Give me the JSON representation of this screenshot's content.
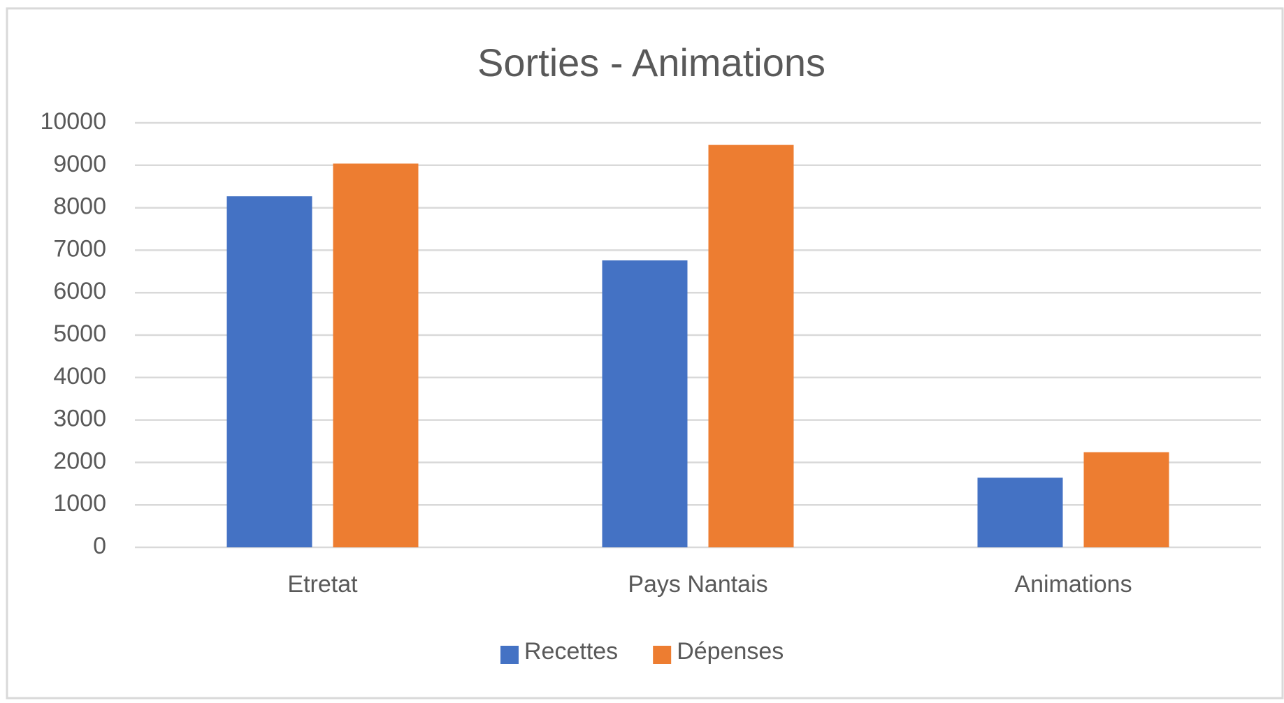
{
  "chart_data": {
    "type": "bar",
    "title": "Sorties - Animations",
    "categories": [
      "Etretat",
      "Pays Nantais",
      "Animations"
    ],
    "series": [
      {
        "name": "Recettes",
        "color": "#4472c4",
        "values": [
          8270,
          6760,
          1640
        ]
      },
      {
        "name": "Dépenses",
        "color": "#ed7d31",
        "values": [
          9040,
          9480,
          2240
        ]
      }
    ],
    "ylim": [
      0,
      10000
    ],
    "yticks": [
      0,
      1000,
      2000,
      3000,
      4000,
      5000,
      6000,
      7000,
      8000,
      9000,
      10000
    ],
    "grid": true,
    "legend": "bottom"
  }
}
